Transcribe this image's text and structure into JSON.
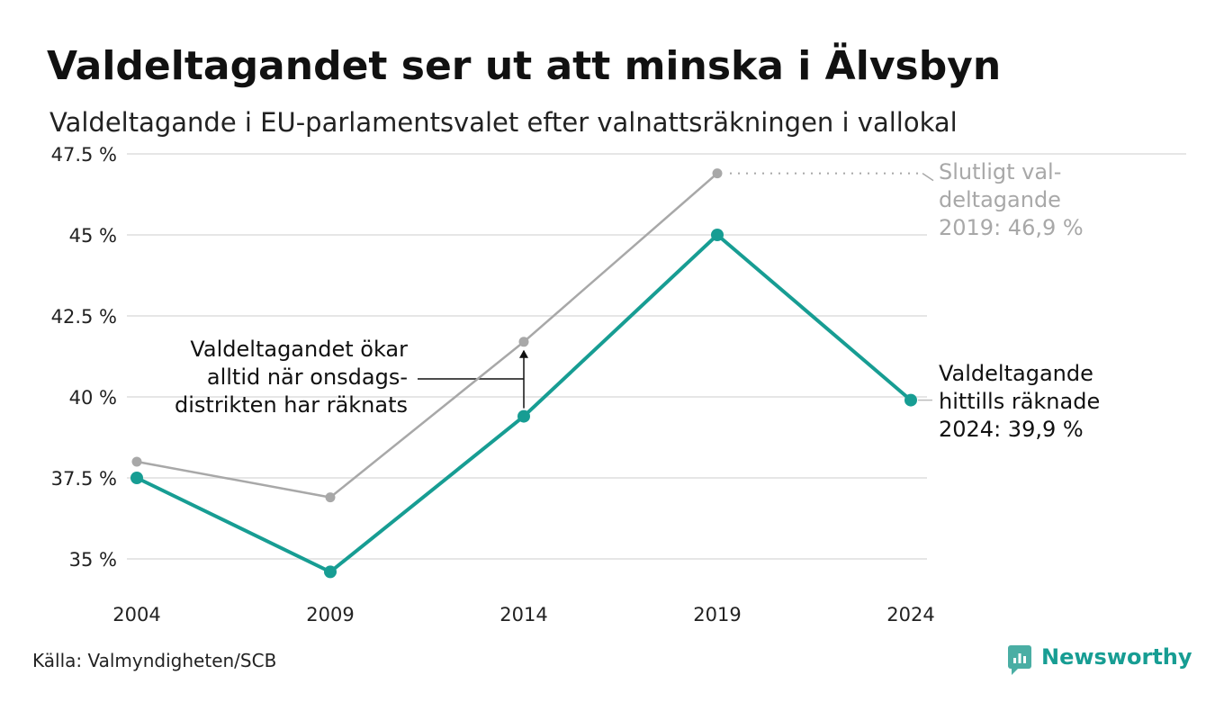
{
  "chart_data": {
    "type": "line",
    "title": "Valdeltagandet ser ut att minska i Älvsbyn",
    "subtitle": "Valdeltagande i EU-parlamentsvalet efter valnattsräkningen i vallokal",
    "categories": [
      "2004",
      "2009",
      "2014",
      "2019",
      "2024"
    ],
    "y_ticks": [
      35,
      37.5,
      40,
      42.5,
      45,
      47.5
    ],
    "y_tick_labels": [
      "35 %",
      "37.5 %",
      "40 %",
      "42.5 %",
      "45 %",
      "47.5 %"
    ],
    "ylim": [
      34.2,
      47.5
    ],
    "grid": true,
    "series": [
      {
        "key": "final",
        "color": "#a8a8a8",
        "values": [
          38.0,
          36.9,
          41.7,
          46.9,
          null
        ]
      },
      {
        "key": "election_night",
        "color": "#179d93",
        "values": [
          37.5,
          34.6,
          39.4,
          45.0,
          39.9
        ]
      }
    ],
    "annotations": {
      "final_label": [
        "Slutligt val-",
        "deltagande",
        "2019: 46,9 %"
      ],
      "current_label": [
        "Valdeltagande",
        "hittills räknade",
        "2024: 39,9 %"
      ],
      "arrow_label": [
        "Valdeltagandet ökar",
        "alltid när onsdags-",
        "distrikten har räknats"
      ]
    },
    "source": "Källa: Valmyndigheten/SCB",
    "brand": "Newsworthy"
  }
}
